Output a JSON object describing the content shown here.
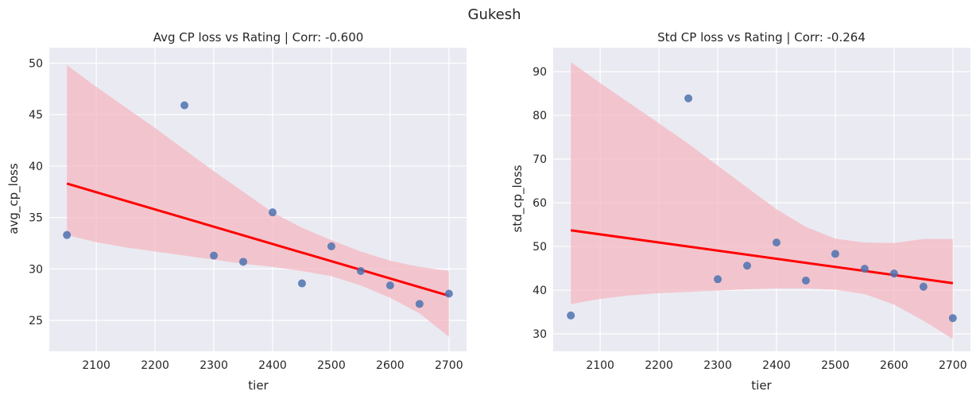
{
  "figure": {
    "suptitle": "Gukesh"
  },
  "chart_data": [
    {
      "type": "scatter",
      "title": "Avg CP loss vs Rating | Corr: -0.600",
      "xlabel": "tier",
      "ylabel": "avg_cp_loss",
      "xlim": [
        2020,
        2730
      ],
      "ylim": [
        22,
        51.5
      ],
      "xticks": [
        2100,
        2200,
        2300,
        2400,
        2500,
        2600,
        2700
      ],
      "yticks": [
        25,
        30,
        35,
        40,
        45,
        50
      ],
      "grid": true,
      "points": {
        "x": [
          2050,
          2250,
          2300,
          2350,
          2400,
          2450,
          2500,
          2550,
          2600,
          2650,
          2700
        ],
        "y": [
          33.3,
          45.9,
          31.3,
          30.7,
          35.5,
          28.6,
          32.2,
          29.8,
          28.4,
          26.6,
          27.6
        ]
      },
      "regression_line": {
        "x": [
          2050,
          2700
        ],
        "y": [
          38.3,
          27.4
        ]
      },
      "confidence_band": {
        "x": [
          2050,
          2100,
          2150,
          2200,
          2250,
          2300,
          2350,
          2400,
          2450,
          2500,
          2550,
          2600,
          2650,
          2700
        ],
        "upper": [
          49.8,
          47.7,
          45.7,
          43.7,
          41.6,
          39.5,
          37.5,
          35.5,
          34.0,
          32.8,
          31.7,
          30.8,
          30.2,
          29.8
        ],
        "lower": [
          33.3,
          32.6,
          32.1,
          31.7,
          31.3,
          30.9,
          30.5,
          30.2,
          29.8,
          29.3,
          28.4,
          27.2,
          25.7,
          23.4
        ]
      },
      "colors": {
        "points": "#4c72b0",
        "line": "#ff0000",
        "band": "#f4b8c2",
        "bg": "#eaeaf2"
      }
    },
    {
      "type": "scatter",
      "title": "Std CP loss vs Rating | Corr: -0.264",
      "xlabel": "tier",
      "ylabel": "std_cp_loss",
      "xlim": [
        2020,
        2730
      ],
      "ylim": [
        26,
        95.5
      ],
      "xticks": [
        2100,
        2200,
        2300,
        2400,
        2500,
        2600,
        2700
      ],
      "yticks": [
        30,
        40,
        50,
        60,
        70,
        80,
        90
      ],
      "grid": true,
      "points": {
        "x": [
          2050,
          2250,
          2300,
          2350,
          2400,
          2450,
          2500,
          2550,
          2600,
          2650,
          2700
        ],
        "y": [
          34.2,
          83.9,
          42.5,
          45.6,
          50.9,
          42.2,
          48.3,
          44.9,
          43.8,
          40.8,
          33.6
        ]
      },
      "regression_line": {
        "x": [
          2050,
          2700
        ],
        "y": [
          53.7,
          41.6
        ]
      },
      "confidence_band": {
        "x": [
          2050,
          2100,
          2150,
          2200,
          2250,
          2300,
          2350,
          2400,
          2450,
          2500,
          2550,
          2600,
          2650,
          2700
        ],
        "upper": [
          92.2,
          87.4,
          82.8,
          78.2,
          73.5,
          68.5,
          63.5,
          58.5,
          54.5,
          51.8,
          50.9,
          50.8,
          51.7,
          51.7
        ],
        "lower": [
          36.8,
          38.0,
          38.8,
          39.3,
          39.6,
          39.9,
          40.2,
          40.4,
          40.4,
          40.1,
          39.1,
          36.7,
          33.0,
          28.8
        ]
      },
      "colors": {
        "points": "#4c72b0",
        "line": "#ff0000",
        "band": "#f4b8c2",
        "bg": "#eaeaf2"
      }
    }
  ]
}
